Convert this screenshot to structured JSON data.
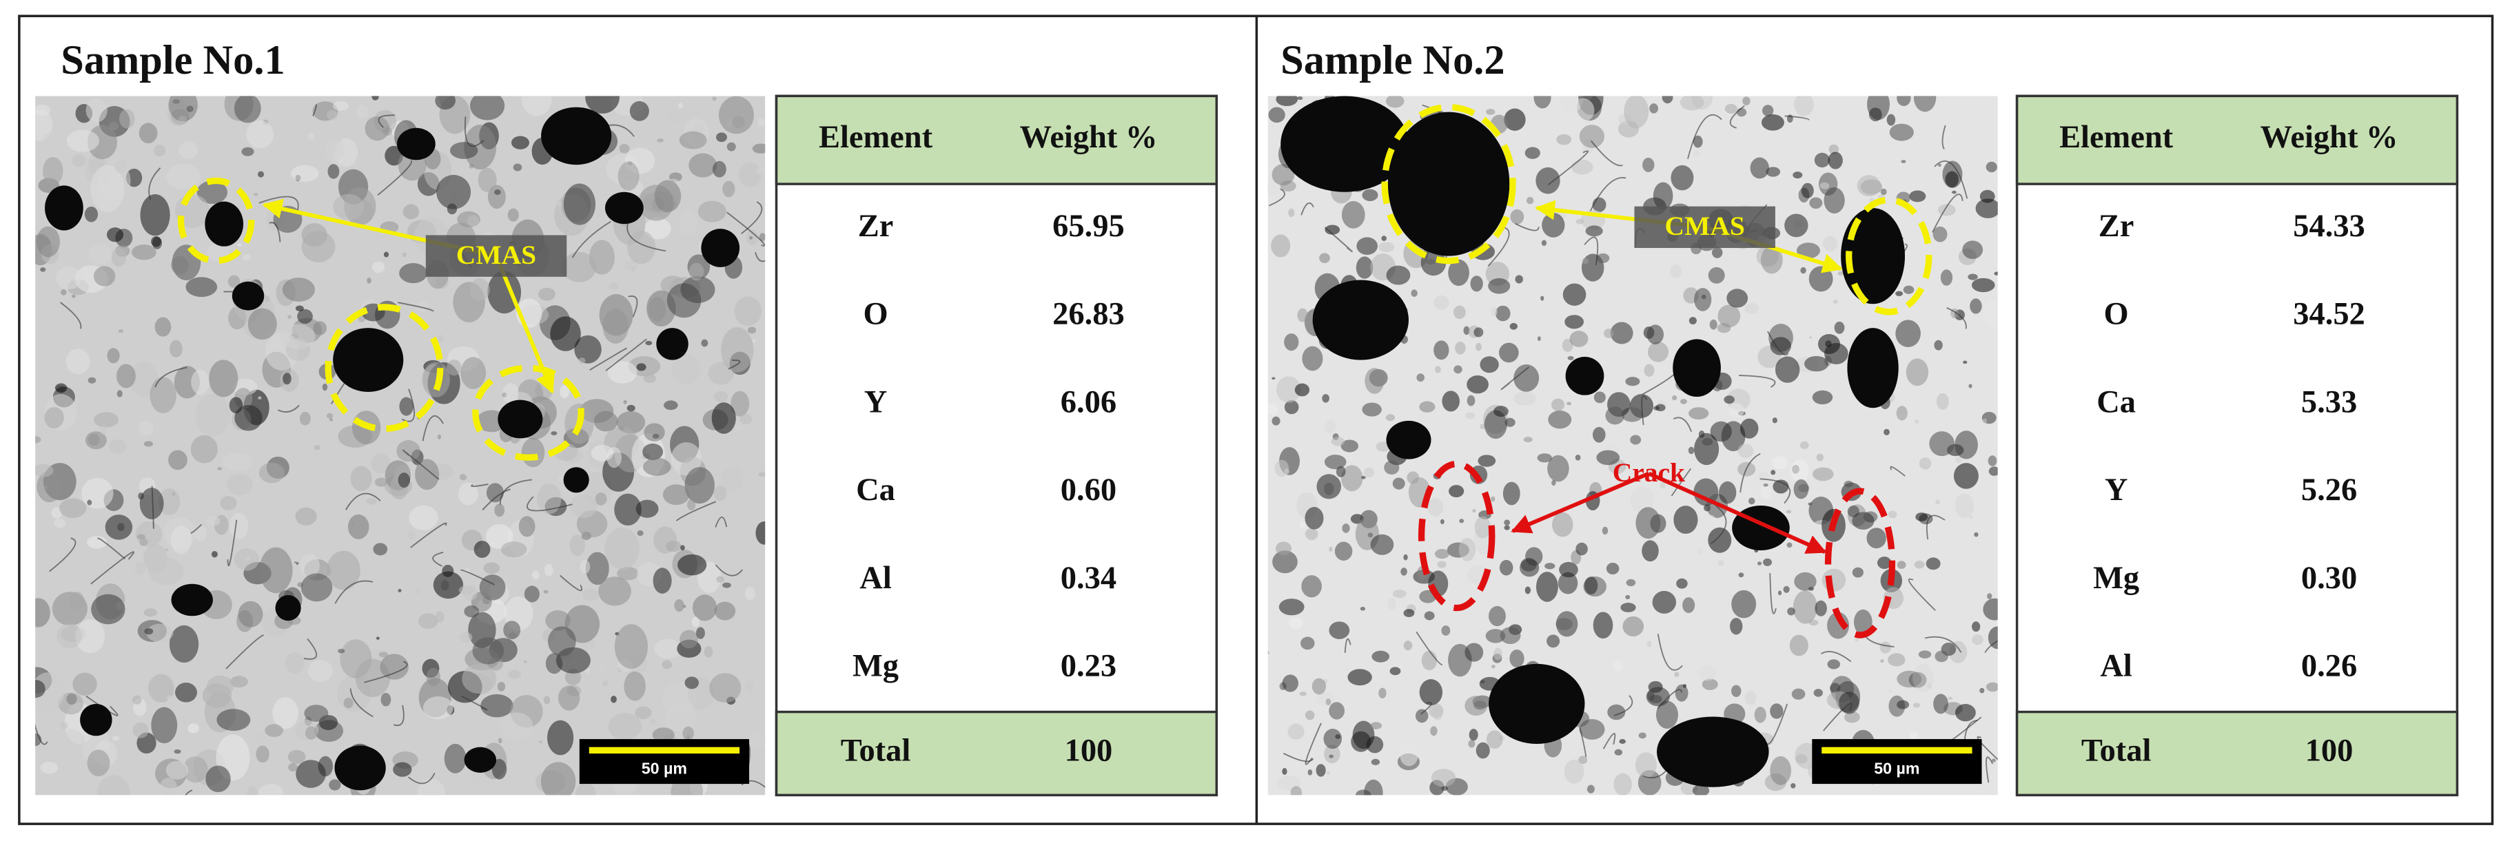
{
  "panels": [
    {
      "title": "Sample No.1",
      "annotations": [
        "CMAS"
      ],
      "scale_bar": "50 µm",
      "table": {
        "header": [
          "Element",
          "Weight %"
        ],
        "rows": [
          [
            "Zr",
            "65.95"
          ],
          [
            "O",
            "26.83"
          ],
          [
            "Y",
            "6.06"
          ],
          [
            "Ca",
            "0.60"
          ],
          [
            "Al",
            "0.34"
          ],
          [
            "Mg",
            "0.23"
          ]
        ],
        "total": [
          "Total",
          "100"
        ]
      }
    },
    {
      "title": "Sample No.2",
      "annotations": [
        "CMAS",
        "Crack"
      ],
      "scale_bar": "50 µm",
      "table": {
        "header": [
          "Element",
          "Weight %"
        ],
        "rows": [
          [
            "Zr",
            "54.33"
          ],
          [
            "O",
            "34.52"
          ],
          [
            "Ca",
            "5.33"
          ],
          [
            "Y",
            "5.26"
          ],
          [
            "Mg",
            "0.30"
          ],
          [
            "Al",
            "0.26"
          ]
        ],
        "total": [
          "Total",
          "100"
        ]
      }
    }
  ]
}
